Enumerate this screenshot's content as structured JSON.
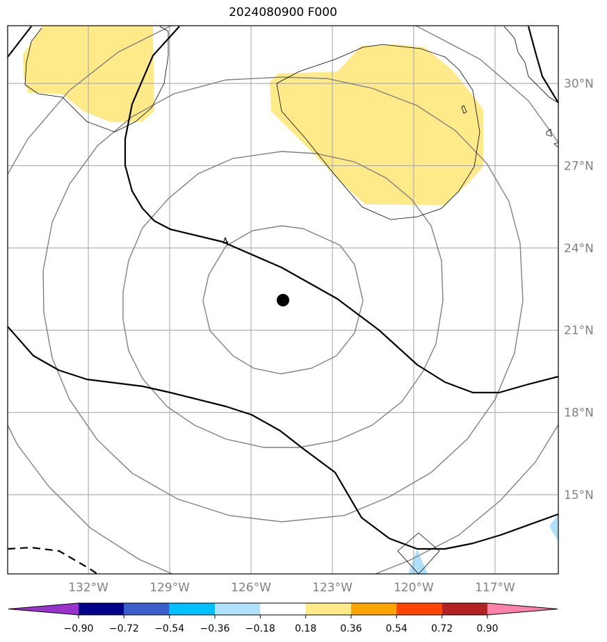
{
  "title": "2024080900 F000",
  "map": {
    "projection": "plate-carree",
    "lon_range": [
      -135,
      -115
    ],
    "lat_range": [
      12,
      32
    ],
    "center": {
      "lon": -125,
      "lat": 22.1,
      "marker": "filled-circle"
    },
    "x_ticks": [
      {
        "lon": -132,
        "label": "132°W"
      },
      {
        "lon": -129,
        "label": "129°W"
      },
      {
        "lon": -126,
        "label": "126°W"
      },
      {
        "lon": -123,
        "label": "123°W"
      },
      {
        "lon": -120,
        "label": "120°W"
      },
      {
        "lon": -117,
        "label": "117°W"
      }
    ],
    "y_ticks": [
      {
        "lat": 30,
        "label": "30°N"
      },
      {
        "lat": 27,
        "label": "27°N"
      },
      {
        "lat": 24,
        "label": "24°N"
      },
      {
        "lat": 21,
        "label": "21°N"
      },
      {
        "lat": 18,
        "label": "18°N"
      },
      {
        "lat": 15,
        "label": "15°N"
      }
    ],
    "grid": true,
    "contour_label": "4",
    "colors": {
      "grid": "#b0b0b0",
      "range_rings": "#808080",
      "positive_fill": "#ffea8a",
      "negative_fill": "#aee0fb",
      "contour": "#000000"
    }
  },
  "colorbar": {
    "colors": [
      "#9a32cd",
      "#00008b",
      "#3a5fcd",
      "#00bfff",
      "#b0e2ff",
      "#ffffff",
      "#ffea8a",
      "#ffa500",
      "#ff4500",
      "#b22222",
      "#ff82ab"
    ],
    "labels": [
      "−0.90",
      "−0.72",
      "−0.54",
      "−0.36",
      "−0.18",
      "0.18",
      "0.36",
      "0.54",
      "0.72",
      "0.90"
    ]
  }
}
